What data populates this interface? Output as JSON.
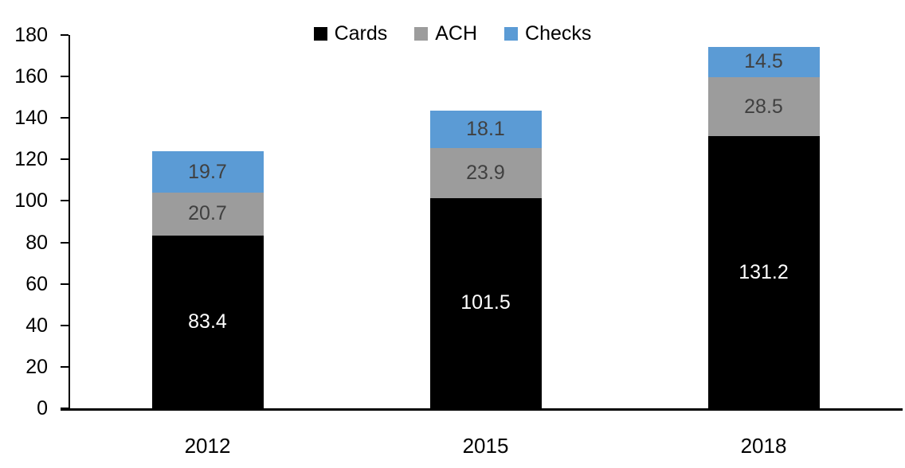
{
  "background": "#FFFFFF",
  "axis_color": "#000000",
  "chart_data": {
    "type": "bar",
    "stacked": true,
    "title": "",
    "xlabel": "",
    "ylabel": "",
    "categories": [
      "2012",
      "2015",
      "2018"
    ],
    "series": [
      {
        "name": "Cards",
        "color": "#000000",
        "label_color": "#FFFFFF",
        "values": [
          83.4,
          101.5,
          131.2
        ]
      },
      {
        "name": "ACH",
        "color": "#9C9C9C",
        "label_color": "#404040",
        "values": [
          20.7,
          23.9,
          28.5
        ]
      },
      {
        "name": "Checks",
        "color": "#5B9BD5",
        "label_color": "#404040",
        "values": [
          19.7,
          18.1,
          14.5
        ]
      }
    ],
    "totals": [
      123.8,
      143.5,
      174.2
    ],
    "ylim": [
      0,
      180
    ],
    "yticks": [
      0,
      20,
      40,
      60,
      80,
      100,
      120,
      140,
      160,
      180
    ],
    "grid": false,
    "legend": {
      "position": "top",
      "labels": [
        "Cards",
        "ACH",
        "Checks"
      ]
    }
  }
}
